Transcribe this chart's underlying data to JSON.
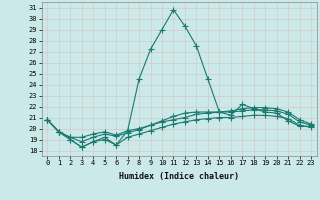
{
  "xlabel": "Humidex (Indice chaleur)",
  "bg_color": "#cce9e9",
  "grid_color": "#d4c8c8",
  "line_color": "#1a7a6e",
  "xlim": [
    -0.5,
    23.5
  ],
  "ylim": [
    17.5,
    31.5
  ],
  "yticks": [
    18,
    19,
    20,
    21,
    22,
    23,
    24,
    25,
    26,
    27,
    28,
    29,
    30,
    31
  ],
  "xticks": [
    0,
    1,
    2,
    3,
    4,
    5,
    6,
    7,
    8,
    9,
    10,
    11,
    12,
    13,
    14,
    15,
    16,
    17,
    18,
    19,
    20,
    21,
    22,
    23
  ],
  "series": [
    [
      20.8,
      19.7,
      19.0,
      18.3,
      18.8,
      19.2,
      18.5,
      19.8,
      24.5,
      27.2,
      29.0,
      30.8,
      29.3,
      27.5,
      24.5,
      21.5,
      21.2,
      22.2,
      21.8,
      21.5,
      21.4,
      20.7,
      20.2,
      20.2
    ],
    [
      20.8,
      19.7,
      19.2,
      19.2,
      19.5,
      19.7,
      19.4,
      19.8,
      20.0,
      20.3,
      20.6,
      20.8,
      21.0,
      21.3,
      21.4,
      21.5,
      21.6,
      21.8,
      21.9,
      21.9,
      21.8,
      21.5,
      20.8,
      20.4
    ],
    [
      20.8,
      19.7,
      19.2,
      18.8,
      19.2,
      19.5,
      19.3,
      19.6,
      19.9,
      20.3,
      20.7,
      21.1,
      21.4,
      21.5,
      21.5,
      21.5,
      21.5,
      21.6,
      21.7,
      21.7,
      21.6,
      21.3,
      20.6,
      20.3
    ],
    [
      20.8,
      19.7,
      19.0,
      18.3,
      18.8,
      19.0,
      18.5,
      19.2,
      19.5,
      19.8,
      20.1,
      20.4,
      20.6,
      20.8,
      20.9,
      21.0,
      21.0,
      21.1,
      21.2,
      21.2,
      21.1,
      20.9,
      20.3,
      20.1
    ]
  ],
  "marker": "+",
  "markersize": 4,
  "linewidth": 0.8,
  "tick_fontsize": 5,
  "xlabel_fontsize": 6
}
